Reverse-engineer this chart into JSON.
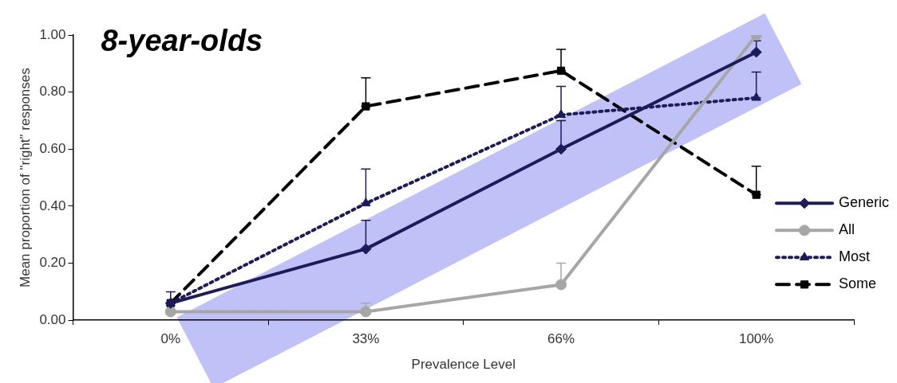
{
  "chart_data": {
    "type": "line",
    "title": "8-year-olds",
    "xlabel": "Prevalence Level",
    "ylabel": "Mean proportion of \"right\" responses",
    "categories": [
      "0%",
      "33%",
      "66%",
      "100%"
    ],
    "ylim": [
      0,
      1
    ],
    "yticks": [
      {
        "value": 0,
        "label": "0.00"
      },
      {
        "value": 0.2,
        "label": "0.20"
      },
      {
        "value": 0.4,
        "label": "0.40"
      },
      {
        "value": 0.6,
        "label": "0.60"
      },
      {
        "value": 0.8,
        "label": "0.80"
      },
      {
        "value": 1,
        "label": "1.00"
      }
    ],
    "legend": "right",
    "series": [
      {
        "name": "Generic",
        "color": "#1c1c5c",
        "marker": "diamond",
        "line_style": "solid",
        "values": [
          0.06,
          0.25,
          0.6,
          0.94
        ],
        "errors": [
          [
            0.06,
            0.1
          ],
          [
            0.25,
            0.35
          ],
          [
            0.6,
            0.7
          ],
          [
            0.94,
            0.98
          ]
        ]
      },
      {
        "name": "All",
        "color": "#a6a6a6",
        "marker": "circle",
        "line_style": "solid",
        "values": [
          0.03,
          0.03,
          0.125,
          1.0
        ],
        "errors": [
          null,
          [
            0.03,
            0.06
          ],
          [
            0.125,
            0.2
          ],
          null
        ]
      },
      {
        "name": "Most",
        "color": "#1c1c5c",
        "marker": "triangle",
        "line_style": "dotted",
        "values": [
          0.06,
          0.41,
          0.72,
          0.78
        ],
        "errors": [
          null,
          [
            0.41,
            0.53
          ],
          [
            0.72,
            0.82
          ],
          [
            0.78,
            0.87
          ]
        ]
      },
      {
        "name": "Some",
        "color": "#000000",
        "marker": "square",
        "line_style": "dashed",
        "values": [
          0.06,
          0.75,
          0.875,
          0.44
        ],
        "errors": [
          null,
          [
            0.75,
            0.85
          ],
          [
            0.875,
            0.95
          ],
          [
            0.44,
            0.54
          ]
        ]
      }
    ]
  }
}
